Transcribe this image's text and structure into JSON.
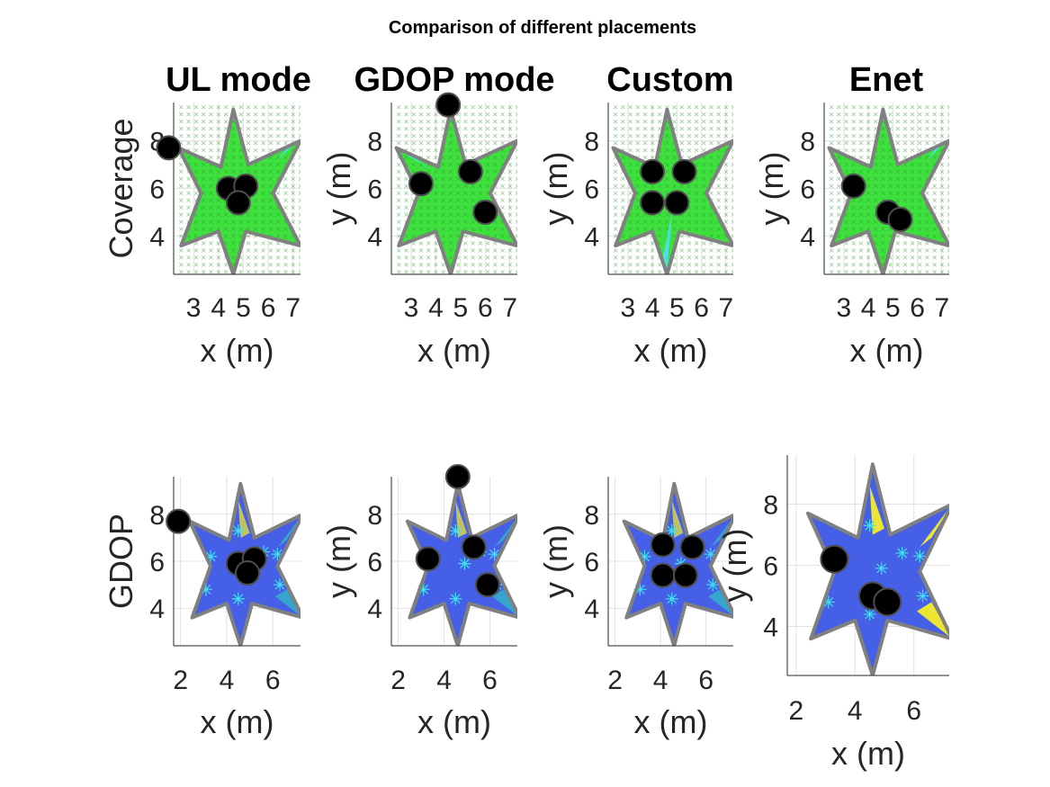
{
  "figure": {
    "title": "Comparison of different placements",
    "column_titles": [
      "UL mode",
      "GDOP mode",
      "Custom",
      "Enet"
    ],
    "row_labels": [
      "Coverage",
      "GDOP"
    ],
    "y_label_other": "y (m)",
    "colors": {
      "coverage_fill": "#3ee03e",
      "coverage_gap": "#4fe0ef",
      "coverage_marker": "#1a1ad0",
      "gdop_fill": "#4560e6",
      "gdop_mid": "#2fc3c0",
      "gdop_high": "#f6ec2a",
      "room_outline": "#808080",
      "anchor": "#000000",
      "test_point": "#40e0f0"
    }
  },
  "chart_data": [
    {
      "type": "scatter",
      "row": "Coverage",
      "column": "UL mode",
      "xlabel": "x (m)",
      "ylabel": "Coverage",
      "xlim": [
        2.2,
        7.3
      ],
      "ylim": [
        2.4,
        9.6
      ],
      "xticks": [
        3,
        4,
        5,
        6,
        7
      ],
      "yticks": [
        4,
        6,
        8
      ],
      "grid": true,
      "anchors": [
        {
          "x": 2,
          "y": 7.7
        },
        {
          "x": 4.4,
          "y": 6.0
        },
        {
          "x": 5.1,
          "y": 6.1
        },
        {
          "x": 4.8,
          "y": 5.4
        }
      ]
    },
    {
      "type": "scatter",
      "row": "Coverage",
      "column": "GDOP mode",
      "xlabel": "x (m)",
      "ylabel": "y (m)",
      "xlim": [
        2.2,
        7.3
      ],
      "ylim": [
        2.4,
        9.6
      ],
      "xticks": [
        3,
        4,
        5,
        6,
        7
      ],
      "yticks": [
        4,
        6,
        8
      ],
      "grid": true,
      "anchors": [
        {
          "x": 4.5,
          "y": 9.5
        },
        {
          "x": 3.4,
          "y": 6.2
        },
        {
          "x": 5.4,
          "y": 6.7
        },
        {
          "x": 6.0,
          "y": 5.0
        }
      ]
    },
    {
      "type": "scatter",
      "row": "Coverage",
      "column": "Custom",
      "xlabel": "x (m)",
      "ylabel": "y (m)",
      "xlim": [
        2.2,
        7.3
      ],
      "ylim": [
        2.4,
        9.6
      ],
      "xticks": [
        3,
        4,
        5,
        6,
        7
      ],
      "yticks": [
        4,
        6,
        8
      ],
      "grid": true,
      "anchors": [
        {
          "x": 4.0,
          "y": 6.7
        },
        {
          "x": 5.3,
          "y": 6.7
        },
        {
          "x": 4.0,
          "y": 5.4
        },
        {
          "x": 5.0,
          "y": 5.4
        }
      ]
    },
    {
      "type": "scatter",
      "row": "Coverage",
      "column": "Enet",
      "xlabel": "x (m)",
      "ylabel": "y (m)",
      "xlim": [
        2.2,
        7.3
      ],
      "ylim": [
        2.4,
        9.6
      ],
      "xticks": [
        3,
        4,
        5,
        6,
        7
      ],
      "yticks": [
        4,
        6,
        8
      ],
      "grid": true,
      "anchors": [
        {
          "x": 3.4,
          "y": 6.1
        },
        {
          "x": 4.8,
          "y": 5.0
        },
        {
          "x": 5.3,
          "y": 4.7
        }
      ]
    },
    {
      "type": "heatmap",
      "row": "GDOP",
      "column": "UL mode",
      "xlabel": "x (m)",
      "ylabel": "GDOP",
      "xlim": [
        1.7,
        7.2
      ],
      "ylim": [
        2.4,
        9.6
      ],
      "xticks": [
        2,
        4,
        6
      ],
      "yticks": [
        4,
        6,
        8
      ],
      "grid": true,
      "anchors": [
        {
          "x": 1.9,
          "y": 7.7
        },
        {
          "x": 4.5,
          "y": 5.9
        },
        {
          "x": 5.2,
          "y": 6.1
        },
        {
          "x": 4.9,
          "y": 5.5
        }
      ]
    },
    {
      "type": "heatmap",
      "row": "GDOP",
      "column": "GDOP mode",
      "xlabel": "x (m)",
      "ylabel": "y (m)",
      "xlim": [
        1.7,
        7.2
      ],
      "ylim": [
        2.4,
        9.6
      ],
      "xticks": [
        2,
        4,
        6
      ],
      "yticks": [
        4,
        6,
        8
      ],
      "grid": true,
      "anchors": [
        {
          "x": 4.6,
          "y": 9.6
        },
        {
          "x": 3.3,
          "y": 6.1
        },
        {
          "x": 5.3,
          "y": 6.6
        },
        {
          "x": 5.9,
          "y": 5.0
        }
      ]
    },
    {
      "type": "heatmap",
      "row": "GDOP",
      "column": "Custom",
      "xlabel": "x (m)",
      "ylabel": "y (m)",
      "xlim": [
        1.7,
        7.2
      ],
      "ylim": [
        2.4,
        9.6
      ],
      "xticks": [
        2,
        4,
        6
      ],
      "yticks": [
        4,
        6,
        8
      ],
      "grid": true,
      "anchors": [
        {
          "x": 4.1,
          "y": 6.7
        },
        {
          "x": 5.4,
          "y": 6.6
        },
        {
          "x": 4.1,
          "y": 5.4
        },
        {
          "x": 5.1,
          "y": 5.4
        }
      ]
    },
    {
      "type": "heatmap",
      "row": "GDOP",
      "column": "Enet",
      "xlabel": "x (m)",
      "ylabel": "y (m)",
      "xlim": [
        1.7,
        7.2
      ],
      "ylim": [
        2.4,
        9.6
      ],
      "xticks": [
        2,
        4,
        6
      ],
      "yticks": [
        4,
        6,
        8
      ],
      "grid": true,
      "anchors": [
        {
          "x": 3.3,
          "y": 6.2
        },
        {
          "x": 4.6,
          "y": 5.0
        },
        {
          "x": 5.1,
          "y": 4.8
        }
      ]
    }
  ]
}
